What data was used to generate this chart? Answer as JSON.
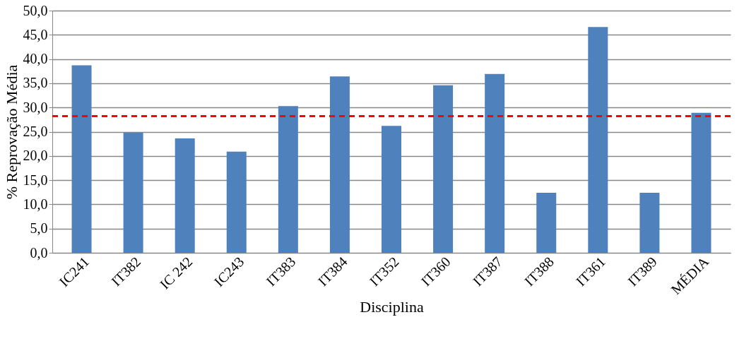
{
  "chart_data": {
    "type": "bar",
    "xlabel": "Disciplina",
    "ylabel": "% Reprovação Média",
    "categories": [
      "IC241",
      "IT382",
      "IC 242",
      "IC243",
      "IT383",
      "IT384",
      "IT352",
      "IT360",
      "IT387",
      "IT388",
      "IT361",
      "IT389",
      "MÉDIA"
    ],
    "values": [
      38.7,
      24.8,
      23.6,
      20.9,
      30.3,
      36.4,
      26.2,
      34.6,
      36.9,
      12.4,
      46.6,
      12.4,
      28.9
    ],
    "color": "#4f81bd",
    "ylim": [
      0,
      50
    ],
    "yticks": [
      {
        "value": 0,
        "label": "0,0"
      },
      {
        "value": 5,
        "label": "5,0"
      },
      {
        "value": 10,
        "label": "10,0"
      },
      {
        "value": 15,
        "label": "15,0"
      },
      {
        "value": 20,
        "label": "20,0"
      },
      {
        "value": 25,
        "label": "25,0"
      },
      {
        "value": 30,
        "label": "30,0"
      },
      {
        "value": 35,
        "label": "35,0"
      },
      {
        "value": 40,
        "label": "40,0"
      },
      {
        "value": 45,
        "label": "45,0"
      },
      {
        "value": 50,
        "label": "50,0"
      }
    ],
    "ref_lines": [
      {
        "axis": "y",
        "value": 28.2,
        "color": "#ff0000",
        "line_style": "dashed"
      }
    ],
    "grid": "y"
  }
}
